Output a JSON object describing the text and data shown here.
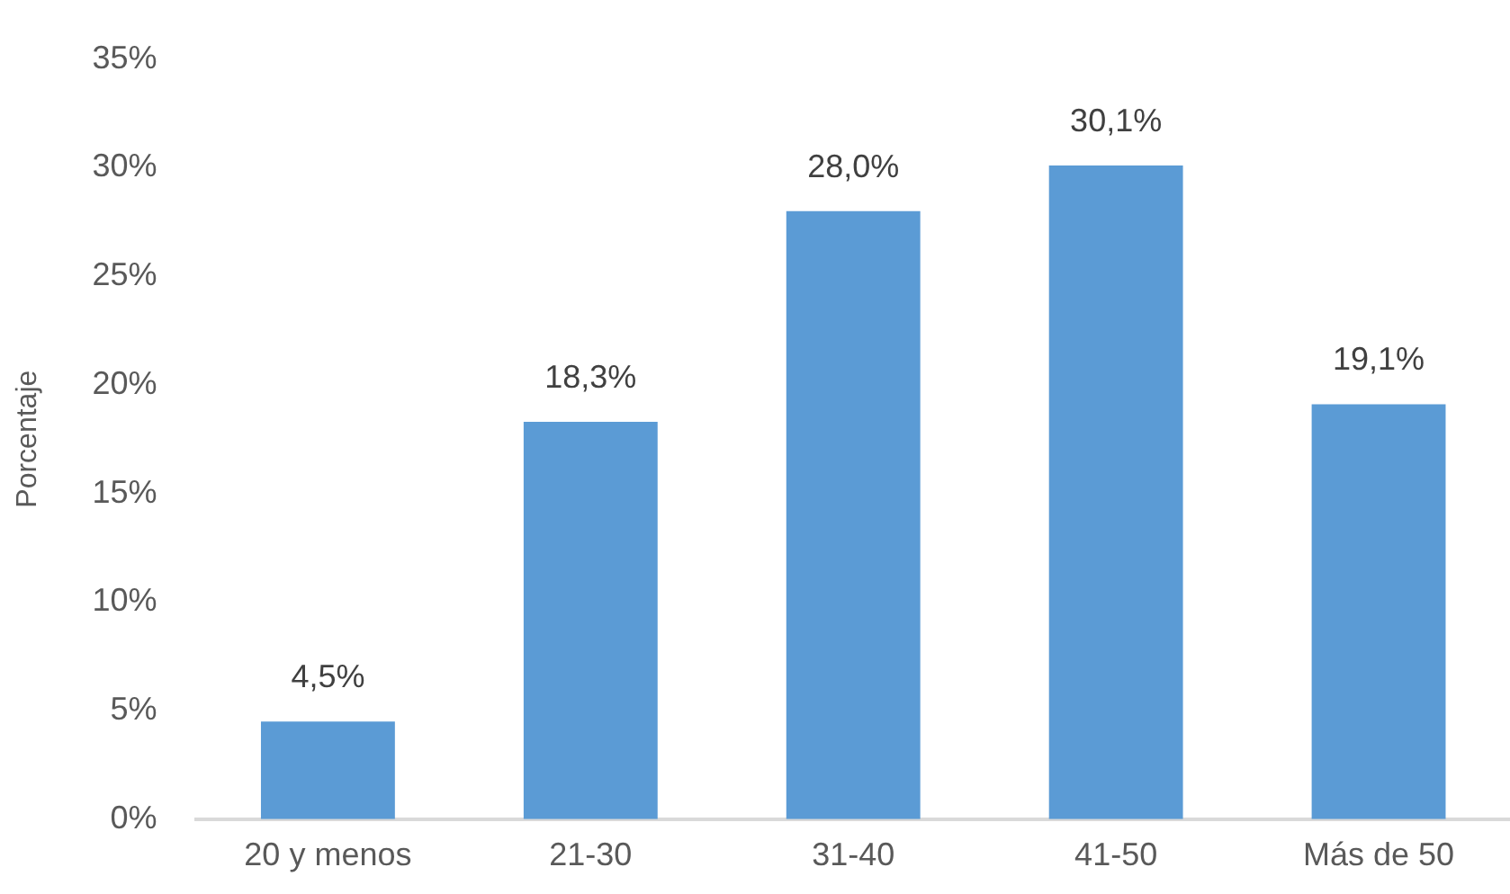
{
  "chart_data": {
    "type": "bar",
    "ylabel": "Porcentaje",
    "categories": [
      "20 y menos",
      "21-30",
      "31-40",
      "41-50",
      "Más de 50"
    ],
    "values": [
      4.5,
      18.3,
      28.0,
      30.1,
      19.1
    ],
    "value_labels": [
      "4,5%",
      "18,3%",
      "28,0%",
      "30,1%",
      "19,1%"
    ],
    "color": "#5b9bd5",
    "ylim": [
      0,
      35
    ],
    "yticks": [
      {
        "value": 0,
        "label": "0%"
      },
      {
        "value": 5,
        "label": "5%"
      },
      {
        "value": 10,
        "label": "10%"
      },
      {
        "value": 15,
        "label": "15%"
      },
      {
        "value": 20,
        "label": "20%"
      },
      {
        "value": 25,
        "label": "25%"
      },
      {
        "value": 30,
        "label": "30%"
      },
      {
        "value": 35,
        "label": "35%"
      }
    ]
  }
}
